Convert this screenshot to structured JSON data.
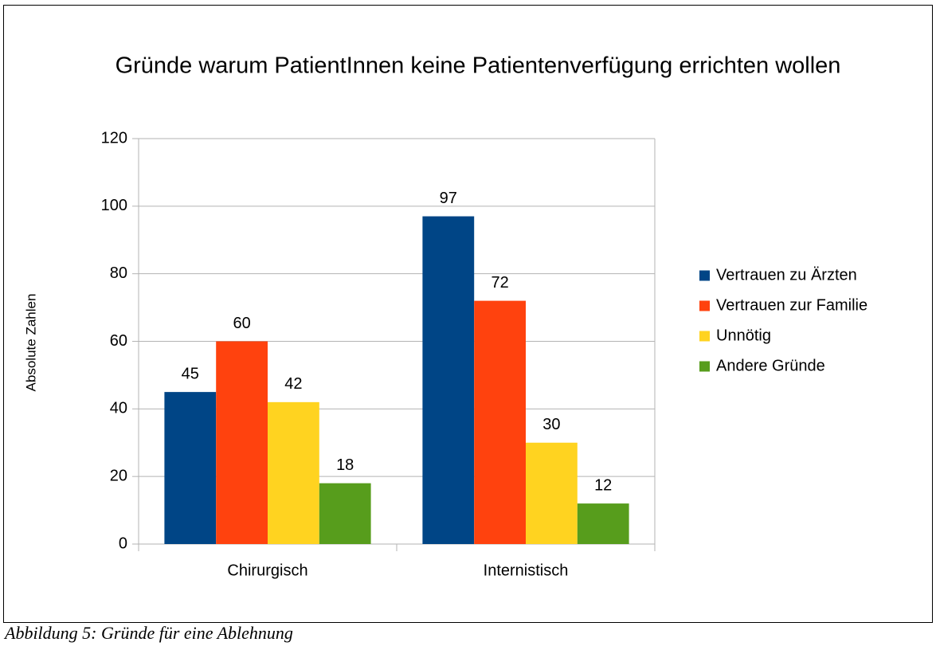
{
  "chart_data": {
    "type": "bar",
    "title": "Gründe warum PatientInnen keine Patientenverfügung errichten wollen",
    "y_label": "Absolute Zahlen",
    "categories": [
      "Chirurgisch",
      "Internistisch"
    ],
    "series": [
      {
        "name": "Vertrauen zu Ärzten",
        "color": "#004586",
        "values": [
          45,
          97
        ]
      },
      {
        "name": "Vertrauen zur Familie",
        "color": "#ff420e",
        "values": [
          60,
          72
        ]
      },
      {
        "name": "Unnötig",
        "color": "#ffd320",
        "values": [
          42,
          30
        ]
      },
      {
        "name": "Andere Gründe",
        "color": "#579d1c",
        "values": [
          18,
          12
        ]
      }
    ],
    "ylim": [
      0,
      120
    ],
    "yticks": [
      0,
      20,
      40,
      60,
      80,
      100,
      120
    ],
    "grid": true,
    "legend": "right"
  },
  "caption": "Abbildung 5: Gründe für eine Ablehnung"
}
